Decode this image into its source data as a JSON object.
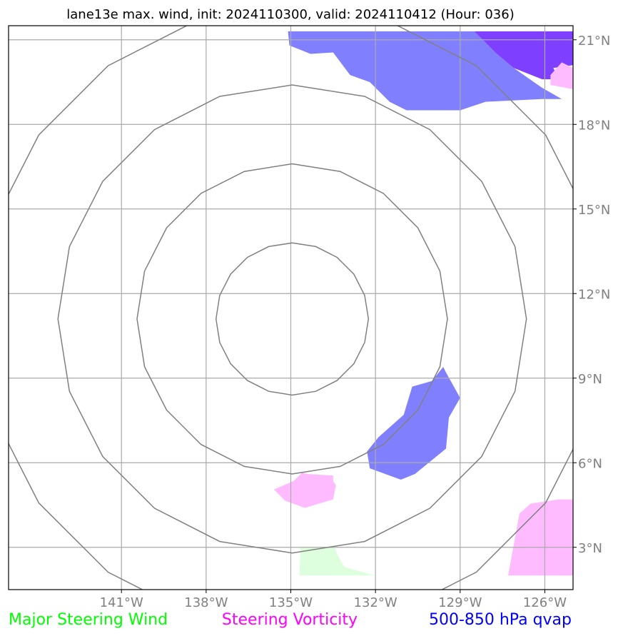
{
  "title": "lane13e max. wind, init: 2024110300, valid: 2024110412 (Hour: 036)",
  "map": {
    "lon_range": [
      -145,
      -125
    ],
    "lat_range": [
      1.5,
      21.5
    ],
    "lon_ticks": [
      {
        "value": -141,
        "label": "141°W"
      },
      {
        "value": -138,
        "label": "138°W"
      },
      {
        "value": -135,
        "label": "135°W"
      },
      {
        "value": -132,
        "label": "132°W"
      },
      {
        "value": -129,
        "label": "129°W"
      },
      {
        "value": -126,
        "label": "126°W"
      }
    ],
    "lat_ticks": [
      {
        "value": 3,
        "label": "3°N"
      },
      {
        "value": 6,
        "label": "6°N"
      },
      {
        "value": 9,
        "label": "9°N"
      },
      {
        "value": 12,
        "label": "12°N"
      },
      {
        "value": 15,
        "label": "15°N"
      },
      {
        "value": 18,
        "label": "18°N"
      },
      {
        "value": 21,
        "label": "21°N"
      }
    ],
    "grid": true,
    "colors": {
      "grid": "#aaaaaa",
      "ring": "#808080",
      "steering_wind": "#ddffdd",
      "steering_vorticity": "#ffbbff",
      "qvap": "#8080ff",
      "qvap_dark": "#7f3fff"
    },
    "range_rings": {
      "center": [
        -134.95,
        11.1
      ],
      "radii_deg": [
        2.7,
        5.5,
        8.3,
        11.1
      ]
    },
    "shaded_regions": [
      {
        "field": "qvap",
        "points": [
          [
            -135.1,
            21.3
          ],
          [
            -135.05,
            20.8
          ],
          [
            -134.3,
            20.5
          ],
          [
            -133.5,
            20.55
          ],
          [
            -132.9,
            19.75
          ],
          [
            -132.2,
            19.5
          ],
          [
            -131.5,
            18.8
          ],
          [
            -130.9,
            18.5
          ],
          [
            -129,
            18.5
          ],
          [
            -128.1,
            18.8
          ],
          [
            -126.1,
            18.9
          ],
          [
            -125.4,
            18.9
          ],
          [
            -126.1,
            19.3
          ],
          [
            -127.1,
            20.0
          ],
          [
            -127.7,
            20.5
          ],
          [
            -128.5,
            21.3
          ]
        ]
      },
      {
        "field": "qvap_dark",
        "points": [
          [
            -128.5,
            21.3
          ],
          [
            -127.7,
            20.5
          ],
          [
            -127.1,
            20.0
          ],
          [
            -126.1,
            19.6
          ],
          [
            -125.5,
            19.6
          ],
          [
            -125.7,
            20.0
          ],
          [
            -125.0,
            20.1
          ],
          [
            -125.0,
            21.3
          ]
        ]
      },
      {
        "field": "steering_vorticity",
        "points": [
          [
            -125.8,
            19.75
          ],
          [
            -125.4,
            20.2
          ],
          [
            -125.0,
            20.0
          ],
          [
            -125.0,
            19.25
          ],
          [
            -125.8,
            19.4
          ]
        ]
      },
      {
        "field": "qvap",
        "points": [
          [
            -131.0,
            7.7
          ],
          [
            -131.9,
            6.9
          ],
          [
            -132.3,
            6.4
          ],
          [
            -132.2,
            5.8
          ],
          [
            -131.1,
            5.4
          ],
          [
            -130.6,
            5.6
          ],
          [
            -129.5,
            6.5
          ],
          [
            -129.4,
            7.6
          ],
          [
            -129.0,
            8.3
          ],
          [
            -129.5,
            9.2
          ],
          [
            -129.6,
            9.4
          ],
          [
            -130.0,
            8.9
          ],
          [
            -130.7,
            8.7
          ]
        ]
      },
      {
        "field": "steering_vorticity",
        "points": [
          [
            -134.9,
            5.35
          ],
          [
            -135.6,
            5.05
          ],
          [
            -135.2,
            4.65
          ],
          [
            -134.5,
            4.4
          ],
          [
            -133.5,
            4.7
          ],
          [
            -133.4,
            5.2
          ],
          [
            -133.5,
            5.35
          ],
          [
            -133.5,
            5.55
          ],
          [
            -133.6,
            5.55
          ],
          [
            -134.4,
            5.6
          ],
          [
            -134.6,
            5.65
          ]
        ]
      },
      {
        "field": "steering_vorticity",
        "points": [
          [
            -126.9,
            4.2
          ],
          [
            -126.5,
            4.55
          ],
          [
            -125.5,
            4.7
          ],
          [
            -125.0,
            4.7
          ],
          [
            -125.0,
            2.0
          ],
          [
            -127.3,
            2.0
          ]
        ]
      },
      {
        "field": "steering_wind",
        "points": [
          [
            -134.65,
            3.0
          ],
          [
            -134.7,
            2.0
          ],
          [
            -132.0,
            2.0
          ],
          [
            -133.1,
            2.3
          ],
          [
            -133.3,
            2.65
          ],
          [
            -133.45,
            3.0
          ]
        ]
      }
    ]
  },
  "legend": [
    {
      "label": "Major Steering Wind",
      "color": "#00ff00"
    },
    {
      "label": "Steering Vorticity",
      "color": "#ff00ff"
    },
    {
      "label": "500-850 hPa qvap",
      "color": "#0000ff"
    }
  ]
}
